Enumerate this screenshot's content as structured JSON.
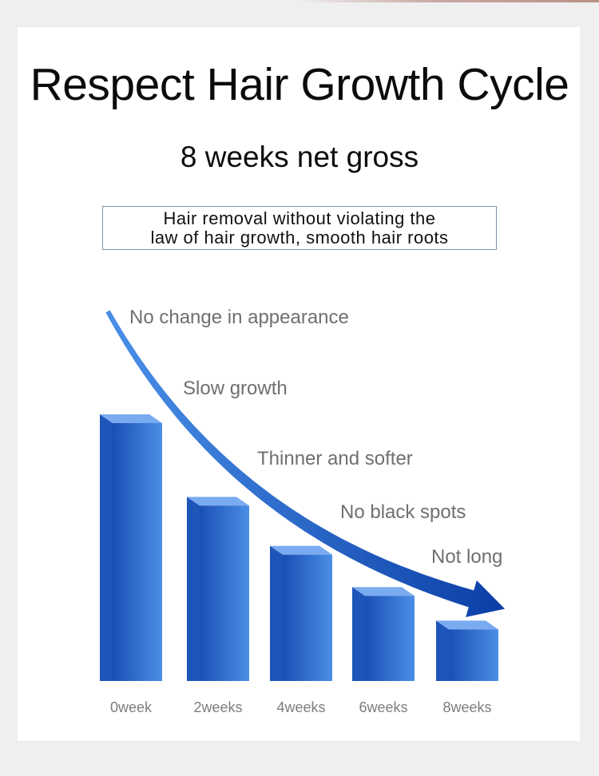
{
  "header": {
    "title": "Respect Hair Growth Cycle",
    "subtitle": "8 weeks net gross"
  },
  "note": {
    "line1": "Hair removal without violating the",
    "line2": "law of hair growth, smooth hair roots"
  },
  "chart_data": {
    "type": "bar",
    "title": "Respect Hair Growth Cycle",
    "subtitle": "8 weeks net gross",
    "categories": [
      "0week",
      "2weeks",
      "4weeks",
      "6weeks",
      "8weeks"
    ],
    "series": [
      {
        "values": [
          100,
          68,
          49,
          33,
          20
        ]
      }
    ],
    "ylim": [
      0,
      100
    ],
    "grid": false,
    "legend": "none",
    "annotations": [
      "No change in appearance",
      "Slow growth",
      "Thinner and softer",
      "No black spots",
      "Not long"
    ],
    "colors": {
      "bar_front_light": "#4a8ee6",
      "bar_front_dark": "#1a4fb5",
      "bar_side": "#1d55b8",
      "bar_top": "#7aaaf0",
      "arrow_start": "#4a90e8",
      "arrow_end": "#0b3ea6"
    }
  }
}
